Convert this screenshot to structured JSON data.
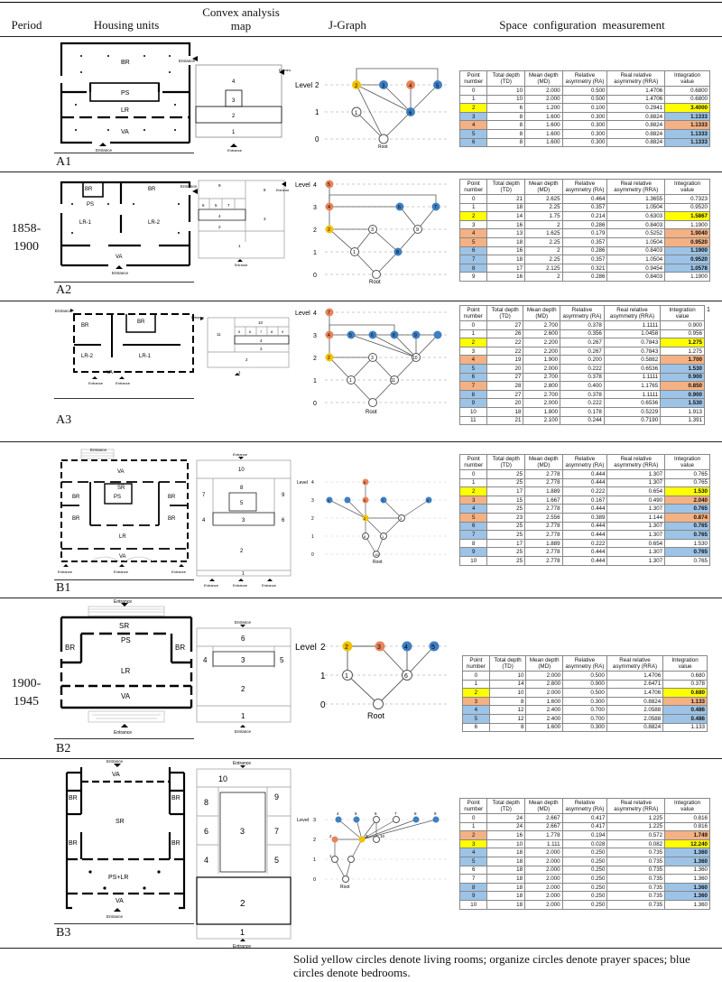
{
  "header": {
    "period": "Period",
    "housing": "Housing units",
    "convex": "Convex analysis\nmap",
    "jgraph": "J-Graph",
    "space": "Space  configuration  measurement"
  },
  "periods": [
    "1858-\n1900",
    "1900-\n1945"
  ],
  "units": [
    "A1",
    "A2",
    "A3",
    "B1",
    "B2",
    "B3"
  ],
  "table_headers": [
    "Point number",
    "Total depth (TD)",
    "Mean depth (MD)",
    "Relative asymnetry (RA)",
    "Real relative asymmetry (RRA)",
    "Integration value"
  ],
  "plan_labels": {
    "entrance": "Entrance",
    "root": "Root",
    "level": "Level",
    "A1": [
      "BR",
      "PS",
      "LR",
      "VA"
    ],
    "A2": [
      "BR",
      "PS",
      "BR",
      "LR-1",
      "LR-2",
      "VA"
    ],
    "A3": [
      "BR",
      "BR",
      "LR-2",
      "LR-1",
      "VA"
    ],
    "B1": [
      "VA",
      "SR",
      "BR",
      "PS",
      "BR",
      "BR",
      "BR",
      "LR",
      "VA"
    ],
    "B2": [
      "SR",
      "PS",
      "BR",
      "BR",
      "LR",
      "VA"
    ],
    "B3": [
      "VA",
      "BR",
      "BR",
      "SR",
      "BR",
      "BR",
      "PS+LR",
      "VA"
    ]
  },
  "convex_numbers": {
    "A1": [
      "4",
      "3",
      "2",
      "1"
    ],
    "A2": [
      "9",
      "6",
      "5",
      "7",
      "8",
      "4",
      "3",
      "2",
      "1"
    ],
    "A3": [
      "10",
      "11",
      "5",
      "6",
      "7",
      "8",
      "9",
      "4",
      "3",
      "2",
      "1"
    ],
    "B1": [
      "10",
      "8",
      "7",
      "9",
      "5",
      "4",
      "3",
      "6",
      "2",
      "1"
    ],
    "B2": [
      "6",
      "4",
      "3",
      "5",
      "2",
      "1"
    ],
    "B3": [
      "10",
      "8",
      "9",
      "6",
      "3",
      "7",
      "4",
      "5",
      "2",
      "1"
    ]
  },
  "jgraph_labels": {
    "A1": {
      "levels": [
        "2",
        "1",
        "0"
      ],
      "nodes": [
        "2",
        "3",
        "4",
        "5",
        "1",
        "6"
      ]
    },
    "A2": {
      "levels": [
        "4",
        "3",
        "2",
        "1",
        "0"
      ],
      "nodes": [
        "5",
        "4",
        "6",
        "7",
        "2",
        "3",
        "9",
        "1",
        "8"
      ]
    },
    "A3": {
      "levels": [
        "4",
        "3",
        "2",
        "1",
        "0"
      ],
      "nodes": [
        "7",
        "4",
        "5",
        "6",
        "8",
        "9",
        "2",
        "3",
        "10",
        "1",
        "11"
      ]
    },
    "B1": {
      "levels": [
        "4",
        "3",
        "2",
        "1",
        "0"
      ],
      "nodes": [
        "6",
        "4",
        "5",
        "7",
        "9",
        "2",
        "3",
        "8",
        "1",
        "10"
      ]
    },
    "B2": {
      "levels": [
        "2",
        "1",
        "0"
      ],
      "nodes": [
        "2",
        "3",
        "4",
        "5",
        "1",
        "6"
      ]
    },
    "B3": {
      "levels": [
        "3",
        "2",
        "1",
        "0"
      ],
      "nodes": [
        "4",
        "5",
        "6",
        "7",
        "8",
        "9",
        "10",
        "2",
        "3",
        "1"
      ]
    }
  },
  "tables": {
    "A1": [
      [
        "0",
        "10",
        "2.000",
        "0.500",
        "1.4706",
        "0.6800",
        "none"
      ],
      [
        "1",
        "10",
        "2.000",
        "0.500",
        "1.4706",
        "0.6800",
        "none"
      ],
      [
        "2",
        "6",
        "1.200",
        "0.100",
        "0.2941",
        "3.4000",
        "yellow"
      ],
      [
        "3",
        "8",
        "1.600",
        "0.300",
        "0.8824",
        "1.1333",
        "blue"
      ],
      [
        "4",
        "8",
        "1.600",
        "0.300",
        "0.8824",
        "1.1333",
        "orange"
      ],
      [
        "5",
        "8",
        "1.600",
        "0.300",
        "0.8824",
        "1.1333",
        "blue"
      ],
      [
        "6",
        "8",
        "1.600",
        "0.300",
        "0.8824",
        "1.1333",
        "blue"
      ]
    ],
    "A2": [
      [
        "0",
        "21",
        "2.625",
        "0.464",
        "1.3655",
        "0.7323",
        "none"
      ],
      [
        "1",
        "18",
        "2.25",
        "0.357",
        "1.0504",
        "0.9520",
        "none"
      ],
      [
        "2",
        "14",
        "1.75",
        "0.214",
        "0.6303",
        "1.5867",
        "yellow"
      ],
      [
        "3",
        "16",
        "2",
        "0.286",
        "0.8403",
        "1.1900",
        "none"
      ],
      [
        "4",
        "13",
        "1.625",
        "0.179",
        "0.5252",
        "1.9040",
        "orange"
      ],
      [
        "5",
        "18",
        "2.25",
        "0.357",
        "1.0504",
        "0.9520",
        "orange"
      ],
      [
        "6",
        "16",
        "2",
        "0.286",
        "0.8403",
        "1.1900",
        "blue"
      ],
      [
        "7",
        "18",
        "2.25",
        "0.357",
        "1.0504",
        "0.9520",
        "blue"
      ],
      [
        "8",
        "17",
        "2.125",
        "0.321",
        "0.9454",
        "1.0578",
        "blue"
      ],
      [
        "9",
        "16",
        "2",
        "0.286",
        "0.8403",
        "1.1900",
        "none"
      ]
    ],
    "A3": [
      [
        "0",
        "27",
        "2.700",
        "0.378",
        "1.1111",
        "0.900",
        "none"
      ],
      [
        "1",
        "26",
        "2.600",
        "0.356",
        "1.0458",
        "0.956",
        "none"
      ],
      [
        "2",
        "22",
        "2.200",
        "0.267",
        "0.7843",
        "1.275",
        "yellow"
      ],
      [
        "3",
        "22",
        "2.200",
        "0.267",
        "0.7843",
        "1.275",
        "none"
      ],
      [
        "4",
        "19",
        "1.900",
        "0.200",
        "0.5882",
        "1.700",
        "orange"
      ],
      [
        "5",
        "20",
        "2.000",
        "0.222",
        "0.6536",
        "1.530",
        "blue"
      ],
      [
        "6",
        "27",
        "2.700",
        "0.378",
        "1.1111",
        "0.900",
        "blue"
      ],
      [
        "7",
        "28",
        "2.800",
        "0.400",
        "1.1765",
        "0.850",
        "orange"
      ],
      [
        "8",
        "27",
        "2.700",
        "0.378",
        "1.1111",
        "0.900",
        "blue"
      ],
      [
        "9",
        "20",
        "2.000",
        "0.222",
        "0.6536",
        "1.530",
        "blue"
      ],
      [
        "10",
        "18",
        "1.800",
        "0.178",
        "0.5229",
        "1.913",
        "none"
      ],
      [
        "11",
        "21",
        "2.100",
        "0.244",
        "0.7190",
        "1.391",
        "none"
      ]
    ],
    "A3_note": "1",
    "B1": [
      [
        "0",
        "25",
        "2.778",
        "0.444",
        "1.307",
        "0.765",
        "none"
      ],
      [
        "1",
        "25",
        "2.778",
        "0.444",
        "1.307",
        "0.765",
        "none"
      ],
      [
        "2",
        "17",
        "1.889",
        "0.222",
        "0.654",
        "1.530",
        "yellow"
      ],
      [
        "3",
        "15",
        "1.667",
        "0.167",
        "0.490",
        "2.040",
        "orange"
      ],
      [
        "4",
        "25",
        "2.778",
        "0.444",
        "1.307",
        "0.765",
        "blue"
      ],
      [
        "5",
        "23",
        "2.556",
        "0.389",
        "1.144",
        "0.874",
        "orange"
      ],
      [
        "6",
        "25",
        "2.778",
        "0.444",
        "1.307",
        "0.765",
        "blue"
      ],
      [
        "7",
        "25",
        "2.778",
        "0.444",
        "1.307",
        "0.765",
        "blue"
      ],
      [
        "8",
        "17",
        "1.889",
        "0.222",
        "0.654",
        "1.530",
        "none"
      ],
      [
        "9",
        "25",
        "2.778",
        "0.444",
        "1.307",
        "0.765",
        "blue"
      ],
      [
        "10",
        "25",
        "2.778",
        "0.444",
        "1.307",
        "0.765",
        "none"
      ]
    ],
    "B2": [
      [
        "0",
        "10",
        "2.000",
        "0.500",
        "1.4706",
        "0.680",
        "none"
      ],
      [
        "1",
        "14",
        "2.800",
        "0.900",
        "2.6471",
        "0.378",
        "none"
      ],
      [
        "2",
        "10",
        "2.000",
        "0.500",
        "1.4706",
        "0.680",
        "yellow"
      ],
      [
        "3",
        "8",
        "1.600",
        "0.300",
        "0.8824",
        "1.133",
        "orange"
      ],
      [
        "4",
        "12",
        "2.400",
        "0.700",
        "2.0588",
        "0.486",
        "blue"
      ],
      [
        "5",
        "12",
        "2.400",
        "0.700",
        "2.0588",
        "0.486",
        "blue"
      ],
      [
        "6",
        "8",
        "1.600",
        "0.300",
        "0.8824",
        "1.133",
        "none"
      ]
    ],
    "B3": [
      [
        "0",
        "24",
        "2.667",
        "0.417",
        "1.225",
        "0.816",
        "none"
      ],
      [
        "1",
        "24",
        "2.667",
        "0.417",
        "1.225",
        "0.816",
        "none"
      ],
      [
        "2",
        "16",
        "1.778",
        "0.194",
        "0.572",
        "1.749",
        "orange"
      ],
      [
        "3",
        "10",
        "1.111",
        "0.028",
        "0.082",
        "12.240",
        "yellow"
      ],
      [
        "4",
        "18",
        "2.000",
        "0.250",
        "0.735",
        "1.360",
        "blue"
      ],
      [
        "5",
        "18",
        "2.000",
        "0.250",
        "0.735",
        "1.360",
        "blue"
      ],
      [
        "6",
        "18",
        "2.000",
        "0.250",
        "0.735",
        "1.360",
        "none"
      ],
      [
        "7",
        "18",
        "2.000",
        "0.250",
        "0.735",
        "1.360",
        "none"
      ],
      [
        "8",
        "18",
        "2.000",
        "0.250",
        "0.735",
        "1.360",
        "blue"
      ],
      [
        "9",
        "18",
        "2.000",
        "0.250",
        "0.735",
        "1.360",
        "blue"
      ],
      [
        "10",
        "18",
        "2.000",
        "0.250",
        "0.735",
        "1.360",
        "none"
      ]
    ]
  },
  "footnote": "Solid yellow circles denote living rooms; organize circles denote prayer spaces; blue circles denote bedrooms.",
  "colors": {
    "yellow": "#ffff00",
    "orange": "#f4b183",
    "blue": "#9dc3e6",
    "node_yellow": "#f2c200",
    "node_orange": "#e8835a",
    "node_blue": "#3f7fc1"
  }
}
